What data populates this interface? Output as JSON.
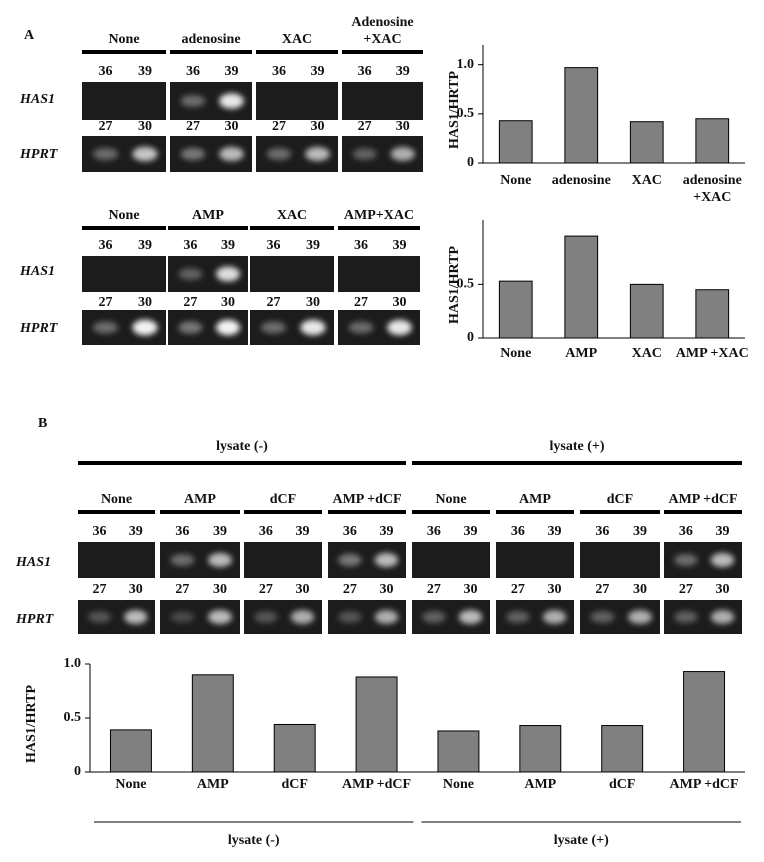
{
  "figure_labels": [
    "A",
    "B"
  ],
  "gels": [
    {
      "lanes": [
        "None",
        "adenosine",
        "XAC",
        "Adenosine +XAC"
      ],
      "rows": [
        {
          "gene": "HAS1",
          "cycles": [
            36,
            39
          ]
        },
        {
          "gene": "HPRT",
          "cycles": [
            27,
            30
          ]
        }
      ]
    },
    {
      "lanes": [
        "None",
        "AMP",
        "XAC",
        "AMP+XAC"
      ],
      "rows": [
        {
          "gene": "HAS1",
          "cycles": [
            36,
            39
          ]
        },
        {
          "gene": "HPRT",
          "cycles": [
            27,
            30
          ]
        }
      ]
    },
    {
      "groups": [
        "lysate (-)",
        "lysate (+)"
      ],
      "lanes": [
        "None",
        "AMP",
        "dCF",
        "AMP +dCF",
        "None",
        "AMP",
        "dCF",
        "AMP +dCF"
      ],
      "rows": [
        {
          "gene": "HAS1",
          "cycles": [
            36,
            39
          ]
        },
        {
          "gene": "HPRT",
          "cycles": [
            27,
            30
          ]
        }
      ]
    }
  ],
  "chart_data": [
    {
      "type": "bar",
      "ylabel": "HAS1/HRTP",
      "categories": [
        "None",
        "adenosine",
        "XAC",
        "adenosine +XAC"
      ],
      "values": [
        0.43,
        0.97,
        0.42,
        0.45
      ],
      "color": "#808080",
      "ylim": [
        0,
        1.2
      ],
      "yticks": [
        0,
        0.5,
        {
          "value": 1,
          "label": "1.0"
        }
      ]
    },
    {
      "type": "bar",
      "ylabel": "HAS1/HRTP",
      "categories": [
        "None",
        "AMP",
        "XAC",
        "AMP +XAC"
      ],
      "values": [
        0.53,
        0.95,
        0.5,
        0.45
      ],
      "color": "#808080",
      "ylim": [
        0,
        1.1
      ],
      "yticks": [
        0,
        0.5
      ]
    },
    {
      "type": "bar",
      "ylabel": "HAS1/HRTP",
      "categories": [
        "None",
        "AMP",
        "dCF",
        "AMP +dCF",
        "None",
        "AMP",
        "dCF",
        "AMP +dCF"
      ],
      "values": [
        0.39,
        0.9,
        0.44,
        0.88,
        0.38,
        0.43,
        0.43,
        0.93
      ],
      "color": "#808080",
      "ylim": [
        0,
        1
      ],
      "yticks": [
        0,
        0.5,
        {
          "value": 1,
          "label": "1.0"
        }
      ],
      "groups": [
        "lysate (-)",
        "lysate (+)"
      ]
    }
  ]
}
